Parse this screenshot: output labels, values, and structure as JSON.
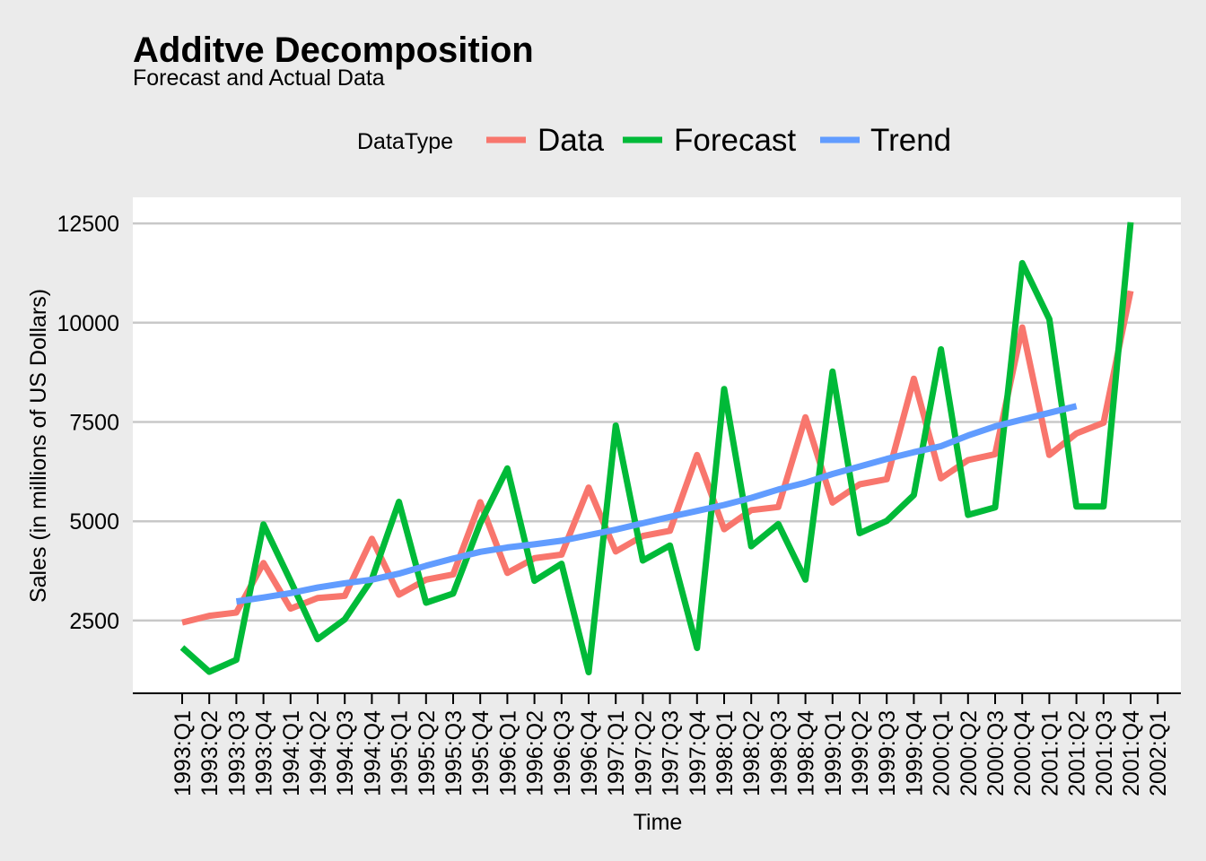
{
  "chart_data": {
    "type": "line",
    "title": "Additve Decomposition",
    "subtitle": "Forecast and Actual Data",
    "xlabel": "Time",
    "ylabel": "Sales (in millions of US Dollars)",
    "legend_title": "DataType",
    "legend_position": "top",
    "ylim": [
      1100,
      13000
    ],
    "yticks": [
      2500,
      5000,
      7500,
      10000,
      12500
    ],
    "grid": true,
    "categories": [
      "1993:Q1",
      "1993:Q2",
      "1993:Q3",
      "1993:Q4",
      "1994:Q1",
      "1994:Q2",
      "1994:Q3",
      "1994:Q4",
      "1995:Q1",
      "1995:Q2",
      "1995:Q3",
      "1995:Q4",
      "1996:Q1",
      "1996:Q2",
      "1996:Q3",
      "1996:Q4",
      "1997:Q1",
      "1997:Q2",
      "1997:Q3",
      "1997:Q4",
      "1998:Q1",
      "1998:Q2",
      "1998:Q3",
      "1998:Q4",
      "1999:Q1",
      "1999:Q2",
      "1999:Q3",
      "1999:Q4",
      "2000:Q1",
      "2000:Q2",
      "2000:Q3",
      "2000:Q4",
      "2001:Q1",
      "2001:Q2",
      "2001:Q3",
      "2001:Q4",
      "2002:Q1"
    ],
    "series": [
      {
        "name": "Data",
        "color": "#f8766d",
        "values": [
          2450,
          2620,
          2700,
          3950,
          2800,
          3070,
          3120,
          4560,
          3150,
          3530,
          3660,
          5480,
          3700,
          4070,
          4160,
          5850,
          4240,
          4630,
          4760,
          6670,
          4800,
          5280,
          5360,
          7620,
          5470,
          5930,
          6060,
          8590,
          6080,
          6540,
          6690,
          9880,
          6670,
          7210,
          7480,
          10800,
          null
        ]
      },
      {
        "name": "Forecast",
        "color": "#00ba38",
        "values": [
          1820,
          1210,
          1510,
          4920,
          3500,
          2030,
          2530,
          3540,
          5490,
          2950,
          3180,
          4950,
          6330,
          3500,
          3930,
          1200,
          7410,
          4010,
          4390,
          1810,
          8330,
          4370,
          4930,
          3530,
          8770,
          4700,
          5010,
          5660,
          9330,
          5160,
          5350,
          11500,
          10090,
          5370,
          5370,
          12530,
          null
        ]
      },
      {
        "name": "Trend",
        "color": "#619cff",
        "values": [
          null,
          null,
          2980,
          3080,
          3190,
          3330,
          3440,
          3530,
          3680,
          3880,
          4060,
          4230,
          4340,
          4420,
          4510,
          4650,
          4790,
          4950,
          5110,
          5260,
          5410,
          5590,
          5800,
          5970,
          6190,
          6380,
          6570,
          6740,
          6890,
          7160,
          7390,
          7560,
          7730,
          7900,
          null,
          null,
          null
        ]
      }
    ]
  }
}
